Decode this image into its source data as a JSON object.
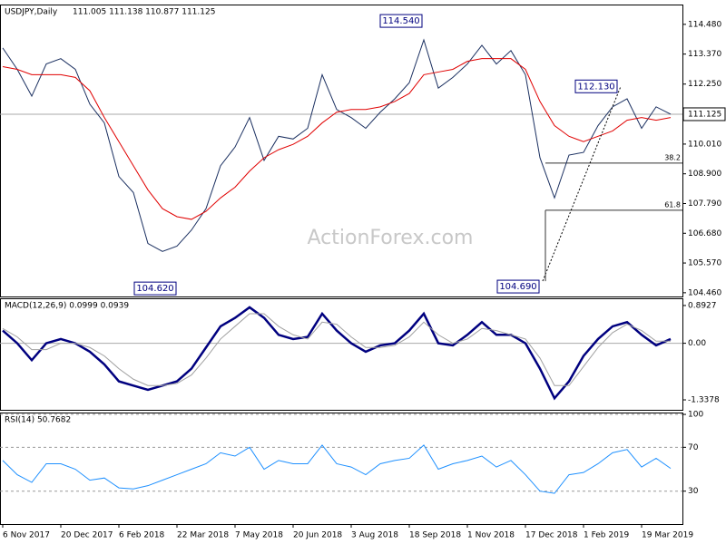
{
  "chart_data": [
    {
      "type": "line",
      "title": "USDJPY,Daily",
      "subtitle": "111.005 111.138 110.877 111.125",
      "watermark": "ActionForex.com",
      "categories": [
        "6 Nov 2017",
        null,
        null,
        null,
        "20 Dec 2017",
        null,
        null,
        null,
        "6 Feb 2018",
        null,
        null,
        null,
        "22 Mar 2018",
        null,
        null,
        null,
        "7 May 2018",
        null,
        null,
        null,
        "20 Jun 2018",
        null,
        null,
        null,
        "3 Aug 2018",
        null,
        null,
        null,
        "18 Sep 2018",
        null,
        null,
        null,
        "1 Nov 2018",
        null,
        null,
        null,
        "17 Dec 2018",
        null,
        null,
        null,
        "1 Feb 2019",
        null,
        null,
        null,
        "19 Mar 2019",
        null,
        null
      ],
      "series": [
        {
          "color": "#1a2f60",
          "values": [
            113.6,
            112.8,
            111.8,
            113.0,
            113.2,
            112.8,
            111.5,
            110.8,
            108.8,
            108.2,
            106.3,
            106.0,
            106.2,
            106.8,
            107.6,
            109.2,
            109.9,
            111.0,
            109.4,
            110.3,
            110.2,
            110.6,
            112.6,
            111.3,
            111.0,
            110.6,
            111.2,
            111.7,
            112.3,
            113.9,
            112.1,
            112.5,
            113.0,
            113.7,
            113.0,
            113.5,
            112.6,
            109.5,
            108.0,
            109.6,
            109.7,
            110.7,
            111.4,
            111.7,
            110.6,
            111.4,
            111.125
          ]
        },
        {
          "color": "#e00000",
          "values": [
            112.9,
            112.8,
            112.6,
            112.6,
            112.6,
            112.5,
            112.0,
            111.0,
            110.1,
            109.2,
            108.3,
            107.6,
            107.3,
            107.2,
            107.5,
            108.0,
            108.4,
            109.0,
            109.5,
            109.8,
            110.0,
            110.3,
            110.8,
            111.2,
            111.3,
            111.3,
            111.4,
            111.6,
            111.9,
            112.6,
            112.7,
            112.8,
            113.1,
            113.2,
            113.2,
            113.2,
            112.8,
            111.6,
            110.7,
            110.3,
            110.1,
            110.3,
            110.5,
            110.9,
            111.0,
            110.9,
            111.0
          ]
        }
      ],
      "ylim": [
        104.32,
        115.22
      ],
      "yticks": [
        {
          "value": 114.48,
          "label": "114.480"
        },
        {
          "value": 113.37,
          "label": "113.370"
        },
        {
          "value": 112.25,
          "label": "112.250"
        },
        {
          "value": 111.125,
          "label": "111.125"
        },
        {
          "value": 110.01,
          "label": "110.010"
        },
        {
          "value": 108.9,
          "label": "108.900"
        },
        {
          "value": 107.79,
          "label": "107.790"
        },
        {
          "value": 106.68,
          "label": "106.680"
        },
        {
          "value": 105.57,
          "label": "105.570"
        },
        {
          "value": 104.46,
          "label": "104.460"
        }
      ],
      "annotations": [
        {
          "value": 114.54,
          "label": "114.540"
        },
        {
          "value": 104.62,
          "label": "104.620"
        },
        {
          "value": 112.13,
          "label": "112.130"
        },
        {
          "value": 104.69,
          "label": "104.690"
        }
      ],
      "fib_levels": [
        {
          "value": 109.3,
          "label": "38.2"
        },
        {
          "value": 107.54,
          "label": "61.8"
        }
      ]
    },
    {
      "type": "line",
      "title": "MACD(12,26,9) 0.0999 0.0939",
      "series": [
        {
          "color": "#00007f",
          "values": [
            0.3,
            0.0,
            -0.4,
            0.0,
            0.1,
            0.0,
            -0.2,
            -0.5,
            -0.9,
            -1.0,
            -1.1,
            -1.0,
            -0.9,
            -0.6,
            -0.1,
            0.4,
            0.6,
            0.85,
            0.6,
            0.2,
            0.1,
            0.15,
            0.7,
            0.3,
            0.0,
            -0.2,
            -0.05,
            0.0,
            0.3,
            0.7,
            0.0,
            -0.05,
            0.2,
            0.5,
            0.2,
            0.2,
            0.0,
            -0.6,
            -1.3,
            -0.9,
            -0.3,
            0.1,
            0.4,
            0.5,
            0.2,
            -0.05,
            0.1
          ]
        },
        {
          "color": "#a0a0a0",
          "values": [
            0.35,
            0.15,
            -0.15,
            -0.15,
            0.0,
            0.0,
            -0.1,
            -0.3,
            -0.6,
            -0.85,
            -1.0,
            -1.0,
            -0.95,
            -0.75,
            -0.35,
            0.1,
            0.4,
            0.7,
            0.7,
            0.4,
            0.2,
            0.1,
            0.5,
            0.45,
            0.15,
            -0.1,
            -0.1,
            -0.05,
            0.15,
            0.5,
            0.2,
            0.0,
            0.1,
            0.35,
            0.3,
            0.2,
            0.1,
            -0.35,
            -1.0,
            -1.0,
            -0.55,
            -0.1,
            0.25,
            0.45,
            0.3,
            0.05,
            0.05
          ]
        }
      ],
      "ylim": [
        -1.573,
        1.063
      ],
      "yticks": [
        0.8927,
        {
          "value": 0,
          "label": "0.00"
        },
        -1.3378
      ]
    },
    {
      "type": "line",
      "title": "RSI(14) 50.7682",
      "grid": true,
      "series": [
        {
          "color": "#1e90ff",
          "values": [
            58,
            45,
            38,
            55,
            55,
            50,
            40,
            42,
            33,
            32,
            35,
            40,
            45,
            50,
            55,
            65,
            62,
            70,
            50,
            58,
            55,
            55,
            72,
            55,
            52,
            45,
            55,
            58,
            60,
            72,
            50,
            55,
            58,
            62,
            52,
            58,
            45,
            30,
            28,
            45,
            47,
            55,
            65,
            68,
            52,
            60,
            50.7682
          ]
        }
      ],
      "ylim": [
        0,
        101.7
      ],
      "yticks": [
        100,
        70,
        30
      ]
    }
  ]
}
